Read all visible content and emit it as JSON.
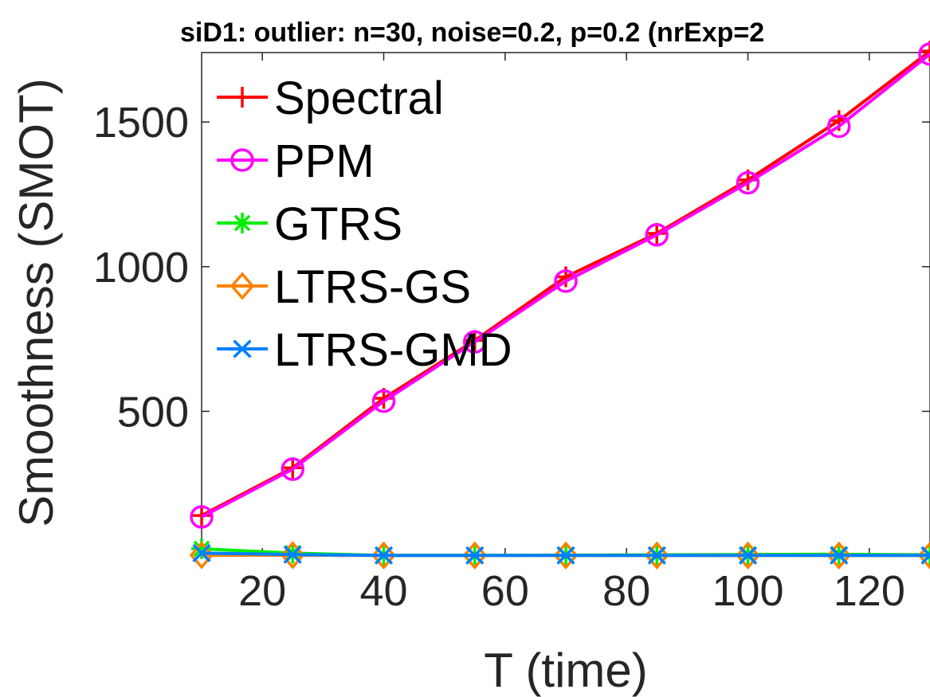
{
  "chart_data": {
    "type": "line",
    "title": "siD1: outlier: n=30, noise=0.2, p=0.2 (nrExp=2",
    "xlabel": "T (time)",
    "ylabel": "Smoothness (SMOT)",
    "x": [
      10,
      25,
      40,
      55,
      70,
      85,
      100,
      115,
      130
    ],
    "xlim": [
      10,
      130
    ],
    "ylim": [
      0,
      1740
    ],
    "xticks": [
      20,
      40,
      60,
      80,
      100,
      120
    ],
    "yticks": [
      500,
      1000,
      1500
    ],
    "grid": false,
    "legend_position": "top-left",
    "series": [
      {
        "name": "Spectral",
        "color": "#ff0000",
        "marker": "plus",
        "values": [
          140,
          305,
          545,
          745,
          965,
          1115,
          1300,
          1505,
          1745
        ]
      },
      {
        "name": "PPM",
        "color": "#ff00ff",
        "marker": "circle",
        "values": [
          135,
          300,
          535,
          740,
          950,
          1110,
          1290,
          1485,
          1735
        ]
      },
      {
        "name": "GTRS",
        "color": "#00ee00",
        "marker": "star",
        "values": [
          25,
          10,
          2,
          2,
          3,
          4,
          5,
          6,
          4
        ]
      },
      {
        "name": "LTRS-GS",
        "color": "#ff8000",
        "marker": "diamond",
        "values": [
          3,
          3,
          2,
          2,
          2,
          2,
          2,
          2,
          2
        ]
      },
      {
        "name": "LTRS-GMD",
        "color": "#0080ff",
        "marker": "x",
        "values": [
          10,
          5,
          2,
          2,
          2,
          2,
          2,
          2,
          2
        ]
      }
    ]
  }
}
